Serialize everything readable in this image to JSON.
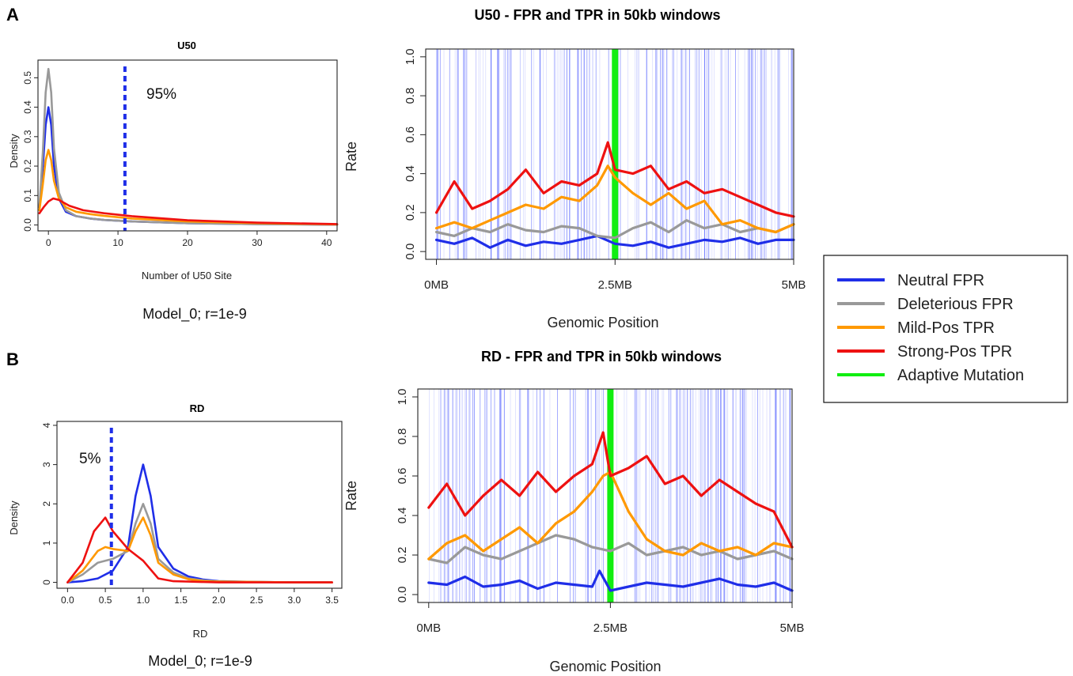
{
  "panels": {
    "a": "A",
    "b": "B"
  },
  "legend": [
    {
      "label": "Neutral FPR",
      "color": "#1f2ee8"
    },
    {
      "label": "Deleterious FPR",
      "color": "#999999"
    },
    {
      "label": "Mild-Pos TPR",
      "color": "#ff9900"
    },
    {
      "label": "Strong-Pos TPR",
      "color": "#ee1111"
    },
    {
      "label": "Adaptive Mutation",
      "color": "#11ee11"
    }
  ],
  "chart_data": [
    {
      "id": "u50-density",
      "type": "line",
      "title": "U50",
      "xlabel": "Number of U50 Site",
      "ylabel": "Density",
      "caption": "Model_0; r=1e-9",
      "xlim": [
        -1.5,
        41.5
      ],
      "ylim": [
        -0.02,
        0.56
      ],
      "xticks": [
        0,
        10,
        20,
        30,
        40
      ],
      "yticks": [
        0.0,
        0.1,
        0.2,
        0.3,
        0.4,
        0.5
      ],
      "threshold": {
        "x": 11,
        "label": "95%"
      },
      "series": [
        {
          "name": "Neutral FPR",
          "color": "#1f2ee8",
          "x": [
            -1.3,
            -0.8,
            -0.4,
            0,
            0.4,
            0.8,
            1.5,
            2.5,
            4,
            6,
            8,
            12,
            20,
            30,
            41.5
          ],
          "y": [
            0.06,
            0.2,
            0.34,
            0.4,
            0.34,
            0.2,
            0.09,
            0.045,
            0.03,
            0.022,
            0.017,
            0.012,
            0.006,
            0.003,
            0.001
          ]
        },
        {
          "name": "Deleterious FPR",
          "color": "#999999",
          "x": [
            -1.3,
            -0.8,
            -0.4,
            0,
            0.4,
            0.8,
            1.5,
            2.5,
            4,
            6,
            8,
            12,
            20,
            30,
            41.5
          ],
          "y": [
            0.06,
            0.25,
            0.45,
            0.53,
            0.45,
            0.26,
            0.11,
            0.05,
            0.03,
            0.022,
            0.017,
            0.012,
            0.006,
            0.003,
            0.001
          ]
        },
        {
          "name": "Mild-Pos TPR",
          "color": "#ff9900",
          "x": [
            -1.3,
            -0.8,
            -0.4,
            0,
            0.4,
            0.8,
            1.5,
            2.5,
            4,
            6,
            8,
            12,
            20,
            30,
            41.5
          ],
          "y": [
            0.05,
            0.14,
            0.22,
            0.255,
            0.22,
            0.15,
            0.09,
            0.06,
            0.045,
            0.037,
            0.031,
            0.022,
            0.012,
            0.006,
            0.002
          ]
        },
        {
          "name": "Strong-Pos TPR",
          "color": "#ee1111",
          "x": [
            -1.3,
            -0.7,
            0,
            0.7,
            1.5,
            3,
            5,
            8,
            12,
            20,
            30,
            41.5
          ],
          "y": [
            0.04,
            0.06,
            0.08,
            0.09,
            0.085,
            0.065,
            0.05,
            0.04,
            0.03,
            0.016,
            0.008,
            0.003
          ]
        }
      ]
    },
    {
      "id": "u50-rate",
      "type": "line",
      "title": "U50 - FPR and TPR in 50kb windows",
      "xlabel": "Genomic Position",
      "ylabel": "Rate",
      "xlim": [
        -0.15,
        5.0
      ],
      "ylim": [
        -0.04,
        1.04
      ],
      "xticks": [
        {
          "v": 0,
          "label": "0MB"
        },
        {
          "v": 2.5,
          "label": "2.5MB"
        },
        {
          "v": 5,
          "label": "5MB"
        }
      ],
      "yticks": [
        0.0,
        0.2,
        0.4,
        0.6,
        0.8,
        1.0
      ],
      "adaptive_mutation_x": 2.5,
      "series": [
        {
          "name": "Neutral FPR",
          "color": "#1f2ee8",
          "x": [
            0,
            0.25,
            0.5,
            0.75,
            1,
            1.25,
            1.5,
            1.75,
            2,
            2.25,
            2.5,
            2.75,
            3,
            3.25,
            3.5,
            3.75,
            4,
            4.25,
            4.5,
            4.75,
            5
          ],
          "y": [
            0.06,
            0.04,
            0.07,
            0.02,
            0.06,
            0.03,
            0.05,
            0.04,
            0.06,
            0.08,
            0.04,
            0.03,
            0.05,
            0.02,
            0.04,
            0.06,
            0.05,
            0.07,
            0.04,
            0.06,
            0.06
          ]
        },
        {
          "name": "Deleterious FPR",
          "color": "#999999",
          "x": [
            0,
            0.25,
            0.5,
            0.75,
            1,
            1.25,
            1.5,
            1.75,
            2,
            2.25,
            2.5,
            2.75,
            3,
            3.25,
            3.5,
            3.75,
            4,
            4.25,
            4.5,
            4.75,
            5
          ],
          "y": [
            0.1,
            0.08,
            0.12,
            0.1,
            0.14,
            0.11,
            0.1,
            0.13,
            0.12,
            0.08,
            0.07,
            0.12,
            0.15,
            0.1,
            0.16,
            0.12,
            0.14,
            0.1,
            0.12,
            0.1,
            0.14
          ]
        },
        {
          "name": "Mild-Pos TPR",
          "color": "#ff9900",
          "x": [
            0,
            0.25,
            0.5,
            0.75,
            1,
            1.25,
            1.5,
            1.75,
            2,
            2.25,
            2.4,
            2.5,
            2.75,
            3,
            3.25,
            3.5,
            3.75,
            4,
            4.25,
            4.5,
            4.75,
            5
          ],
          "y": [
            0.12,
            0.15,
            0.12,
            0.16,
            0.2,
            0.24,
            0.22,
            0.28,
            0.26,
            0.34,
            0.44,
            0.38,
            0.3,
            0.24,
            0.3,
            0.22,
            0.26,
            0.14,
            0.16,
            0.12,
            0.1,
            0.14
          ]
        },
        {
          "name": "Strong-Pos TPR",
          "color": "#ee1111",
          "x": [
            0,
            0.25,
            0.5,
            0.75,
            1,
            1.25,
            1.5,
            1.75,
            2,
            2.25,
            2.4,
            2.5,
            2.75,
            3,
            3.25,
            3.5,
            3.75,
            4,
            4.25,
            4.5,
            4.75,
            5
          ],
          "y": [
            0.2,
            0.36,
            0.22,
            0.26,
            0.32,
            0.42,
            0.3,
            0.36,
            0.34,
            0.4,
            0.56,
            0.42,
            0.4,
            0.44,
            0.32,
            0.36,
            0.3,
            0.32,
            0.28,
            0.24,
            0.2,
            0.18
          ]
        }
      ]
    },
    {
      "id": "rd-density",
      "type": "line",
      "title": "RD",
      "xlabel": "RD",
      "ylabel": "Density",
      "caption": "Model_0; r=1e-9",
      "xlim": [
        -0.14,
        3.63
      ],
      "ylim": [
        -0.15,
        4.1
      ],
      "xticks": [
        0.0,
        0.5,
        1.0,
        1.5,
        2.0,
        2.5,
        3.0,
        3.5
      ],
      "yticks": [
        0,
        1,
        2,
        3,
        4
      ],
      "threshold": {
        "x": 0.58,
        "label": "5%"
      },
      "series": [
        {
          "name": "Neutral FPR",
          "color": "#1f2ee8",
          "x": [
            0,
            0.2,
            0.4,
            0.6,
            0.8,
            0.9,
            1.0,
            1.1,
            1.2,
            1.4,
            1.6,
            1.8,
            2.0,
            2.5,
            3.0,
            3.5
          ],
          "y": [
            0,
            0.03,
            0.1,
            0.3,
            0.9,
            2.2,
            3.0,
            2.2,
            0.9,
            0.35,
            0.15,
            0.07,
            0.03,
            0.01,
            0,
            0
          ]
        },
        {
          "name": "Deleterious FPR",
          "color": "#999999",
          "x": [
            0,
            0.2,
            0.4,
            0.6,
            0.8,
            0.9,
            1.0,
            1.1,
            1.2,
            1.4,
            1.6,
            1.8,
            2.0,
            2.5,
            3.0,
            3.5
          ],
          "y": [
            0,
            0.2,
            0.5,
            0.6,
            0.8,
            1.5,
            2.0,
            1.5,
            0.6,
            0.25,
            0.1,
            0.05,
            0.02,
            0.01,
            0,
            0
          ]
        },
        {
          "name": "Mild-Pos TPR",
          "color": "#ff9900",
          "x": [
            0,
            0.2,
            0.4,
            0.5,
            0.6,
            0.8,
            0.9,
            1.0,
            1.1,
            1.2,
            1.4,
            1.6,
            1.8,
            2.0,
            2.5,
            3.0,
            3.5
          ],
          "y": [
            0,
            0.3,
            0.8,
            0.9,
            0.85,
            0.8,
            1.3,
            1.65,
            1.2,
            0.5,
            0.2,
            0.08,
            0.03,
            0.02,
            0.01,
            0,
            0
          ]
        },
        {
          "name": "Strong-Pos TPR",
          "color": "#ee1111",
          "x": [
            0,
            0.2,
            0.35,
            0.5,
            0.6,
            0.8,
            1.0,
            1.2,
            1.4,
            1.6,
            1.8,
            2.0,
            2.5,
            3.0,
            3.5
          ],
          "y": [
            0,
            0.5,
            1.3,
            1.65,
            1.3,
            0.85,
            0.55,
            0.1,
            0.03,
            0.02,
            0.01,
            0,
            0,
            0,
            0
          ]
        }
      ]
    },
    {
      "id": "rd-rate",
      "type": "line",
      "title": "RD - FPR and TPR in 50kb windows",
      "xlabel": "Genomic Position",
      "ylabel": "Rate",
      "xlim": [
        -0.15,
        5.0
      ],
      "ylim": [
        -0.04,
        1.04
      ],
      "xticks": [
        {
          "v": 0,
          "label": "0MB"
        },
        {
          "v": 2.5,
          "label": "2.5MB"
        },
        {
          "v": 5,
          "label": "5MB"
        }
      ],
      "yticks": [
        0.0,
        0.2,
        0.4,
        0.6,
        0.8,
        1.0
      ],
      "adaptive_mutation_x": 2.5,
      "series": [
        {
          "name": "Neutral FPR",
          "color": "#1f2ee8",
          "x": [
            0,
            0.25,
            0.5,
            0.75,
            1,
            1.25,
            1.5,
            1.75,
            2,
            2.25,
            2.35,
            2.5,
            2.75,
            3,
            3.25,
            3.5,
            3.75,
            4,
            4.25,
            4.5,
            4.75,
            5
          ],
          "y": [
            0.06,
            0.05,
            0.09,
            0.04,
            0.05,
            0.07,
            0.03,
            0.06,
            0.05,
            0.04,
            0.12,
            0.02,
            0.04,
            0.06,
            0.05,
            0.04,
            0.06,
            0.08,
            0.05,
            0.04,
            0.06,
            0.02
          ]
        },
        {
          "name": "Deleterious FPR",
          "color": "#999999",
          "x": [
            0,
            0.25,
            0.5,
            0.75,
            1,
            1.25,
            1.5,
            1.75,
            2,
            2.25,
            2.5,
            2.75,
            3,
            3.25,
            3.5,
            3.75,
            4,
            4.25,
            4.5,
            4.75,
            5
          ],
          "y": [
            0.18,
            0.16,
            0.24,
            0.2,
            0.18,
            0.22,
            0.26,
            0.3,
            0.28,
            0.24,
            0.22,
            0.26,
            0.2,
            0.22,
            0.24,
            0.2,
            0.22,
            0.18,
            0.2,
            0.22,
            0.18
          ]
        },
        {
          "name": "Mild-Pos TPR",
          "color": "#ff9900",
          "x": [
            0,
            0.25,
            0.5,
            0.75,
            1,
            1.25,
            1.5,
            1.75,
            2,
            2.25,
            2.4,
            2.5,
            2.6,
            2.75,
            3,
            3.25,
            3.5,
            3.75,
            4,
            4.25,
            4.5,
            4.75,
            5
          ],
          "y": [
            0.18,
            0.26,
            0.3,
            0.22,
            0.28,
            0.34,
            0.26,
            0.36,
            0.42,
            0.52,
            0.6,
            0.62,
            0.54,
            0.42,
            0.28,
            0.22,
            0.2,
            0.26,
            0.22,
            0.24,
            0.2,
            0.26,
            0.24
          ]
        },
        {
          "name": "Strong-Pos TPR",
          "color": "#ee1111",
          "x": [
            0,
            0.25,
            0.5,
            0.75,
            1,
            1.25,
            1.5,
            1.75,
            2,
            2.25,
            2.4,
            2.5,
            2.75,
            3,
            3.25,
            3.5,
            3.75,
            4,
            4.25,
            4.5,
            4.75,
            5
          ],
          "y": [
            0.44,
            0.56,
            0.4,
            0.5,
            0.58,
            0.5,
            0.62,
            0.52,
            0.6,
            0.66,
            0.82,
            0.6,
            0.64,
            0.7,
            0.56,
            0.6,
            0.5,
            0.58,
            0.52,
            0.46,
            0.42,
            0.24
          ]
        }
      ]
    }
  ]
}
